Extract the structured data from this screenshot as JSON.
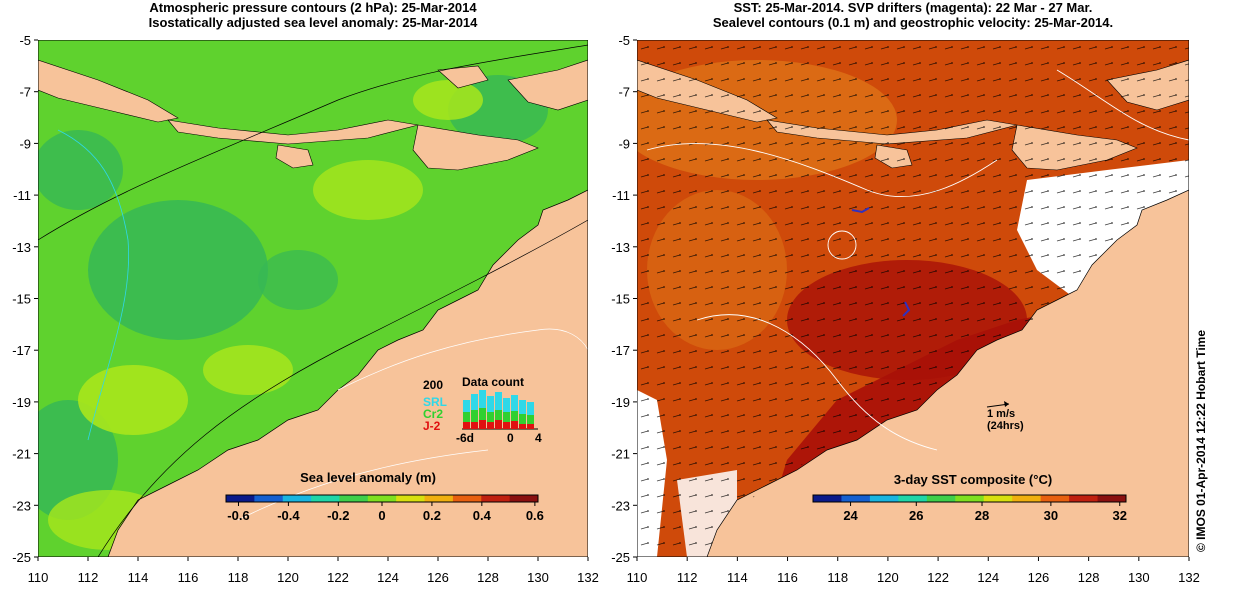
{
  "left_panel": {
    "title_line1": "Atmospheric pressure contours (2 hPa): 25-Mar-2014",
    "title_line2": "Isostatically adjusted sea level anomaly: 25-Mar-2014",
    "colorbar": {
      "label": "Sea level anomaly (m)",
      "ticks": [
        "-0.6",
        "-0.4",
        "-0.2",
        "0",
        "0.2",
        "0.4",
        "0.6"
      ],
      "colors": [
        "#0a1a8a",
        "#1560d0",
        "#19b5e0",
        "#1fd6a8",
        "#3fcf4a",
        "#7fe020",
        "#d8e010",
        "#f0b010",
        "#e86010",
        "#c02010",
        "#8a1010"
      ]
    },
    "data_count": {
      "title": "Data count",
      "max_label": "200",
      "legend": [
        {
          "label": "SRL",
          "color": "#2fd8e8"
        },
        {
          "label": "Cr2",
          "color": "#30d030"
        },
        {
          "label": "J-2",
          "color": "#e01010"
        }
      ],
      "x_labels": [
        "-6d",
        "0",
        "4"
      ]
    }
  },
  "right_panel": {
    "title_line1": "SST: 25-Mar-2014. SVP drifters (magenta): 22 Mar - 27 Mar.",
    "title_line2": "Sealevel contours (0.1 m) and geostrophic velocity: 25-Mar-2014.",
    "colorbar": {
      "label": "3-day SST composite (°C)",
      "ticks": [
        "24",
        "26",
        "28",
        "30",
        "32"
      ],
      "colors": [
        "#0a1a8a",
        "#1560d0",
        "#19b5e0",
        "#1fd6a8",
        "#3fcf4a",
        "#7fe020",
        "#d8e010",
        "#f0b010",
        "#e86010",
        "#c02010",
        "#8a1010"
      ]
    },
    "velocity_scale": {
      "label": "1 m/s",
      "sublabel": "(24hrs)"
    }
  },
  "axes": {
    "lat_ticks": [
      "-5",
      "-7",
      "-9",
      "-11",
      "-13",
      "-15",
      "-17",
      "-19",
      "-21",
      "-23",
      "-25"
    ],
    "lon_ticks": [
      "110",
      "112",
      "114",
      "116",
      "118",
      "120",
      "122",
      "124",
      "126",
      "128",
      "130",
      "132"
    ]
  },
  "copyright": "© IMOS 01-Apr-2014 12:22 Hobart Time",
  "colors": {
    "land": "#f7c39a",
    "ocean_sla": "#5fd22e",
    "ocean_sla_dark": "#36b855",
    "ocean_sla_light": "#a8e61c",
    "sst_warm": "#cf4a0a",
    "sst_hot": "#a81008",
    "sst_mid": "#e07818"
  }
}
